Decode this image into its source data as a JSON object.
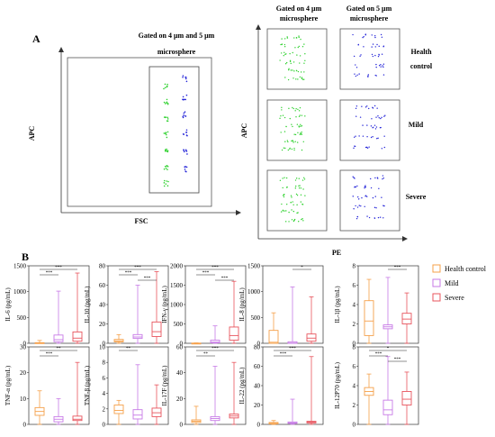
{
  "panel_a": {
    "label": "A",
    "left": {
      "title_line1": "Gated on 4 μm and 5 μm",
      "title_line2": "microsphere",
      "xlabel": "FSC",
      "ylabel": "APC"
    },
    "right": {
      "col1_line1": "Gated on 4 μm",
      "col1_line2": "microsphere",
      "col2_line1": "Gated on 5 μm",
      "col2_line2": "microsphere",
      "row1_line1": "Health",
      "row1_line2": "control",
      "row2": "Mild",
      "row3": "Severe",
      "xlabel": "PE",
      "ylabel": "APC"
    },
    "colors": {
      "green": "#2fd12f",
      "blue": "#2424d8"
    }
  },
  "panel_b": {
    "label": "B",
    "legend": [
      "Health control",
      "Mild",
      "Severe"
    ],
    "colors": [
      "#f5a04a",
      "#c77ae6",
      "#e8555e"
    ]
  },
  "chart_data": [
    {
      "type": "box",
      "ylabel": "IL-6 (pg/mL)",
      "yticks": [
        "0",
        "500",
        "1000",
        "1500"
      ],
      "ylim": [
        0,
        1500
      ],
      "groups": [
        {
          "min": 0,
          "q1": 2,
          "median": 5,
          "q3": 12,
          "max": 55
        },
        {
          "min": 0,
          "q1": 30,
          "median": 70,
          "q3": 160,
          "max": 1010
        },
        {
          "min": 0,
          "q1": 40,
          "median": 100,
          "q3": 220,
          "max": 1360
        }
      ],
      "sig": [
        {
          "a": 0,
          "b": 2,
          "label": "***"
        },
        {
          "a": 0,
          "b": 1,
          "label": "***"
        }
      ]
    },
    {
      "type": "box",
      "ylabel": "IL-10 (pg/mL)",
      "yticks": [
        "0",
        "20",
        "40",
        "60",
        "80"
      ],
      "ylim": [
        0,
        80
      ],
      "groups": [
        {
          "min": 0,
          "q1": 1.5,
          "median": 2.5,
          "q3": 4,
          "max": 9
        },
        {
          "min": 0,
          "q1": 5,
          "median": 6.5,
          "q3": 9,
          "max": 60
        },
        {
          "min": 0,
          "q1": 7,
          "median": 12,
          "q3": 22,
          "max": 74
        }
      ],
      "sig": [
        {
          "a": 0,
          "b": 2,
          "label": "***"
        },
        {
          "a": 0,
          "b": 1,
          "label": "***"
        },
        {
          "a": 1,
          "b": 2,
          "label": "***"
        }
      ]
    },
    {
      "type": "box",
      "ylabel": "IFN-γ (pg/mL)",
      "yticks": [
        "0",
        "500",
        "1000",
        "1500",
        "2000"
      ],
      "ylim": [
        0,
        2000
      ],
      "groups": [
        {
          "min": 0,
          "q1": 0,
          "median": 2,
          "q3": 5,
          "max": 10
        },
        {
          "min": 0,
          "q1": 10,
          "median": 30,
          "q3": 80,
          "max": 450
        },
        {
          "min": 0,
          "q1": 80,
          "median": 200,
          "q3": 420,
          "max": 1600
        }
      ],
      "sig": [
        {
          "a": 0,
          "b": 2,
          "label": "***"
        },
        {
          "a": 0,
          "b": 1,
          "label": "***"
        },
        {
          "a": 1,
          "b": 2,
          "label": "***"
        }
      ]
    },
    {
      "type": "box",
      "ylabel": "IL-8 (pg/mL)",
      "yticks": [
        "0",
        "500",
        "1000",
        "1500"
      ],
      "ylim": [
        0,
        1500
      ],
      "groups": [
        {
          "min": 0,
          "q1": 0,
          "median": 20,
          "q3": 250,
          "max": 590
        },
        {
          "min": 0,
          "q1": 0,
          "median": 5,
          "q3": 30,
          "max": 1090
        },
        {
          "min": 0,
          "q1": 40,
          "median": 100,
          "q3": 180,
          "max": 900
        }
      ],
      "sig": [
        {
          "a": 1,
          "b": 2,
          "label": "*"
        }
      ]
    },
    {
      "type": "box",
      "ylabel": "IL-1β (pg/mL)",
      "yticks": [
        "0",
        "2",
        "4",
        "6",
        "8"
      ],
      "ylim": [
        0,
        8
      ],
      "groups": [
        {
          "min": 0,
          "q1": 0.8,
          "median": 2.3,
          "q3": 4.4,
          "max": 6.6
        },
        {
          "min": 0,
          "q1": 1.5,
          "median": 1.7,
          "q3": 1.9,
          "max": 6.8
        },
        {
          "min": 0,
          "q1": 2.0,
          "median": 2.5,
          "q3": 3.1,
          "max": 5.2
        }
      ],
      "sig": [
        {
          "a": 1,
          "b": 2,
          "label": "***"
        }
      ]
    },
    {
      "type": "box",
      "ylabel": "TNF-α (pg/mL)",
      "yticks": [
        "0",
        "10",
        "20",
        "30"
      ],
      "ylim": [
        0,
        30
      ],
      "groups": [
        {
          "min": 0,
          "q1": 3.5,
          "median": 5,
          "q3": 6.5,
          "max": 13
        },
        {
          "min": 0,
          "q1": 1,
          "median": 2,
          "q3": 3,
          "max": 10
        },
        {
          "min": 0,
          "q1": 1.5,
          "median": 2,
          "q3": 3.2,
          "max": 24
        }
      ],
      "sig": [
        {
          "a": 0,
          "b": 2,
          "label": "**"
        },
        {
          "a": 0,
          "b": 1,
          "label": "***"
        }
      ]
    },
    {
      "type": "box",
      "ylabel": "TNF-β (pg/mL)",
      "yticks": [
        "0",
        "2",
        "4",
        "6",
        "8",
        "10"
      ],
      "ylim": [
        0,
        10
      ],
      "groups": [
        {
          "min": 0,
          "q1": 1.4,
          "median": 1.8,
          "q3": 2.5,
          "max": 3.1
        },
        {
          "min": 0,
          "q1": 0.7,
          "median": 1.2,
          "q3": 1.9,
          "max": 7.7
        },
        {
          "min": 0,
          "q1": 1.0,
          "median": 1.5,
          "q3": 2.1,
          "max": 5.1
        }
      ],
      "sig": [
        {
          "a": 0,
          "b": 1,
          "label": "**"
        }
      ]
    },
    {
      "type": "box",
      "ylabel": "IL-17F (pg/mL)",
      "yticks": [
        "0",
        "20",
        "40",
        "60"
      ],
      "ylim": [
        0,
        60
      ],
      "groups": [
        {
          "min": 0,
          "q1": 1.5,
          "median": 2.5,
          "q3": 3.5,
          "max": 14
        },
        {
          "min": 0,
          "q1": 3,
          "median": 4.5,
          "q3": 6,
          "max": 45
        },
        {
          "min": 0,
          "q1": 5,
          "median": 6.5,
          "q3": 8,
          "max": 48
        }
      ],
      "sig": [
        {
          "a": 0,
          "b": 2,
          "label": "***"
        },
        {
          "a": 0,
          "b": 1,
          "label": "**"
        }
      ]
    },
    {
      "type": "box",
      "ylabel": "IL-22 (pg/mL)",
      "yticks": [
        "0",
        "20",
        "40",
        "60",
        "80"
      ],
      "ylim": [
        0,
        80
      ],
      "groups": [
        {
          "min": 0,
          "q1": 0.5,
          "median": 1,
          "q3": 2,
          "max": 4
        },
        {
          "min": 0,
          "q1": 1,
          "median": 1.5,
          "q3": 2.5,
          "max": 26
        },
        {
          "min": 0,
          "q1": 1.5,
          "median": 2.2,
          "q3": 3.2,
          "max": 70
        }
      ],
      "sig": [
        {
          "a": 0,
          "b": 2,
          "label": "***"
        },
        {
          "a": 0,
          "b": 1,
          "label": "***"
        }
      ]
    },
    {
      "type": "box",
      "ylabel": "IL-12P70 (pg/mL)",
      "yticks": [
        "0",
        "2",
        "4",
        "6",
        "8"
      ],
      "ylim": [
        0,
        8
      ],
      "groups": [
        {
          "min": 0,
          "q1": 3.0,
          "median": 3.4,
          "q3": 3.8,
          "max": 5.2
        },
        {
          "min": 0,
          "q1": 1.0,
          "median": 1.5,
          "q3": 2.5,
          "max": 7.0
        },
        {
          "min": 0,
          "q1": 2.0,
          "median": 2.6,
          "q3": 3.4,
          "max": 5.4
        }
      ],
      "sig": [
        {
          "a": 0,
          "b": 2,
          "label": "*"
        },
        {
          "a": 0,
          "b": 1,
          "label": "***"
        },
        {
          "a": 1,
          "b": 2,
          "label": "***"
        }
      ]
    }
  ]
}
